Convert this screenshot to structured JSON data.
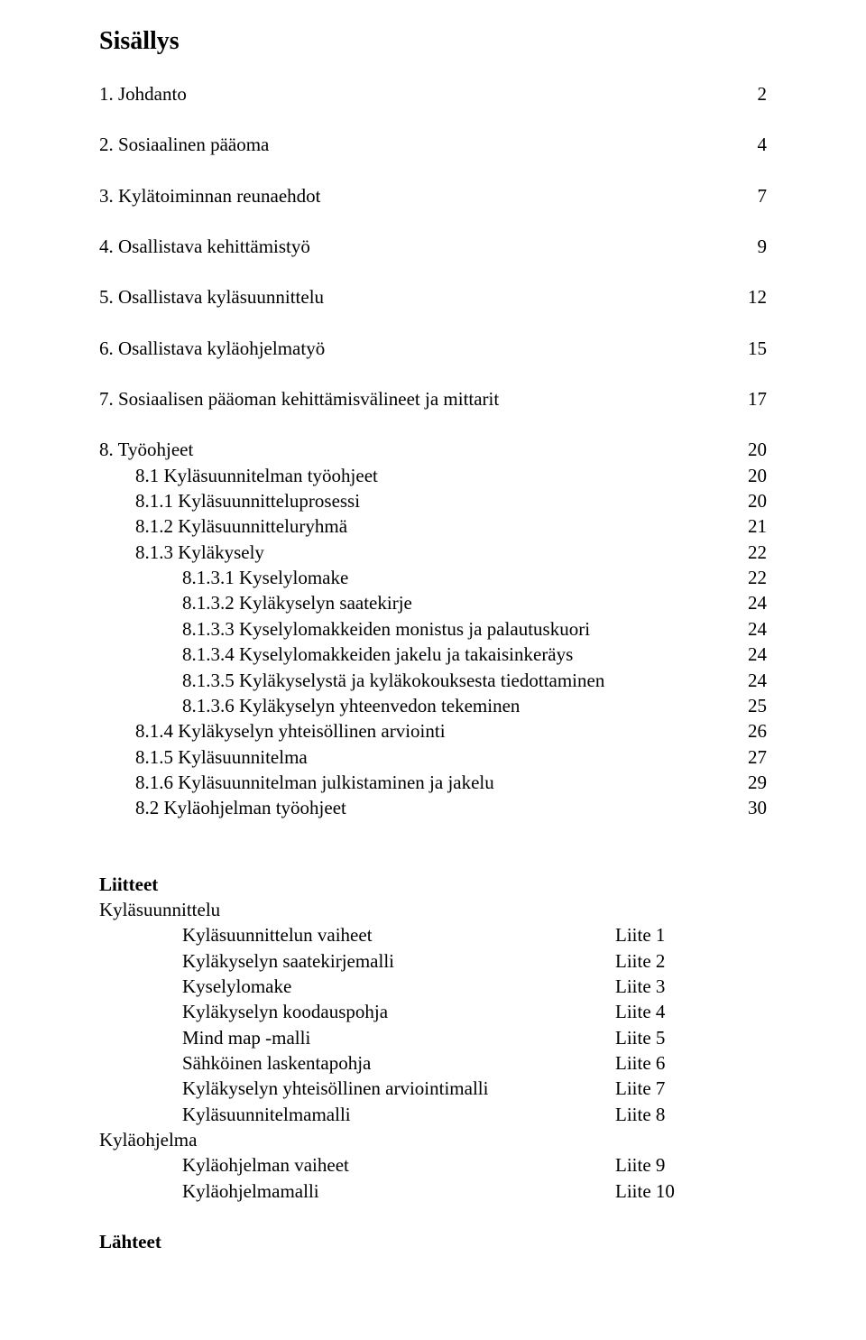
{
  "title": "Sisällys",
  "toc": [
    {
      "label": "1. Johdanto",
      "page": "2",
      "indent": 0
    },
    {
      "label": "2. Sosiaalinen pääoma",
      "page": "4",
      "indent": 0
    },
    {
      "label": "3. Kylätoiminnan reunaehdot",
      "page": "7",
      "indent": 0
    },
    {
      "label": "4. Osallistava kehittämistyö",
      "page": "9",
      "indent": 0
    },
    {
      "label": "5. Osallistava kyläsuunnittelu",
      "page": "12",
      "indent": 0
    },
    {
      "label": "6. Osallistava kyläohjelmatyö",
      "page": "15",
      "indent": 0
    },
    {
      "label": "7. Sosiaalisen pääoman kehittämisvälineet ja mittarit",
      "page": "17",
      "indent": 0
    }
  ],
  "section8": {
    "label": "8. Työohjeet",
    "page": "20"
  },
  "subtoc": [
    {
      "label": "8.1 Kyläsuunnitelman työohjeet",
      "page": "20",
      "indent": 1
    },
    {
      "label": "8.1.1 Kyläsuunnitteluprosessi",
      "page": "20",
      "indent": 1
    },
    {
      "label": "8.1.2 Kyläsuunnitteluryhmä",
      "page": "21",
      "indent": 1
    },
    {
      "label": "8.1.3 Kyläkysely",
      "page": "22",
      "indent": 1
    },
    {
      "label": "8.1.3.1 Kyselylomake",
      "page": "22",
      "indent": 2
    },
    {
      "label": "8.1.3.2 Kyläkyselyn saatekirje",
      "page": "24",
      "indent": 2
    },
    {
      "label": "8.1.3.3 Kyselylomakkeiden monistus ja palautuskuori",
      "page": "24",
      "indent": 2
    },
    {
      "label": "8.1.3.4 Kyselylomakkeiden jakelu ja takaisinkeräys",
      "page": "24",
      "indent": 2
    },
    {
      "label": "8.1.3.5 Kyläkyselystä ja kyläkokouksesta tiedottaminen",
      "page": "24",
      "indent": 2
    },
    {
      "label": "8.1.3.6 Kyläkyselyn yhteenvedon tekeminen",
      "page": "25",
      "indent": 2
    },
    {
      "label": "8.1.4 Kyläkyselyn yhteisöllinen arviointi",
      "page": "26",
      "indent": 1
    },
    {
      "label": "8.1.5 Kyläsuunnitelma",
      "page": "27",
      "indent": 1
    },
    {
      "label": "8.1.6 Kyläsuunnitelman julkistaminen ja jakelu",
      "page": "29",
      "indent": 1
    },
    {
      "label": "8.2 Kyläohjelman työohjeet",
      "page": "30",
      "indent": 1
    }
  ],
  "liitteet_heading": "Liitteet",
  "section_a": "Kyläsuunnittelu",
  "liitteet_a": [
    {
      "label": "Kyläsuunnittelun vaiheet",
      "val": "Liite 1"
    },
    {
      "label": "Kyläkyselyn saatekirjemalli",
      "val": "Liite 2"
    },
    {
      "label": "Kyselylomake",
      "val": "Liite 3"
    },
    {
      "label": "Kyläkyselyn koodauspohja",
      "val": "Liite 4"
    },
    {
      "label": "Mind map -malli",
      "val": "Liite 5"
    },
    {
      "label": "Sähköinen laskentapohja",
      "val": "Liite 6"
    },
    {
      "label": "Kyläkyselyn yhteisöllinen arviointimalli",
      "val": "Liite 7"
    },
    {
      "label": "Kyläsuunnitelmamalli",
      "val": "Liite 8"
    }
  ],
  "section_b": "Kyläohjelma",
  "liitteet_b": [
    {
      "label": "Kyläohjelman vaiheet",
      "val": "Liite 9"
    },
    {
      "label": "Kyläohjelmamalli",
      "val": "Liite 10"
    }
  ],
  "lahteet": "Lähteet"
}
